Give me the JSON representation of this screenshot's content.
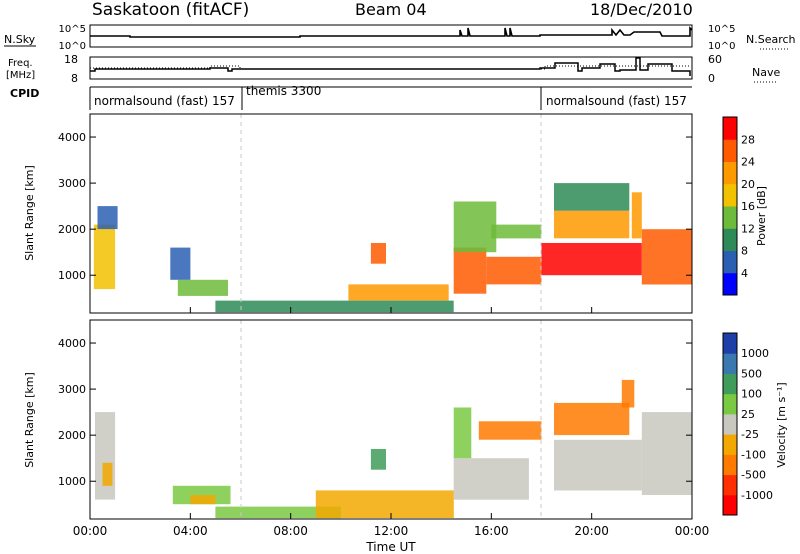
{
  "header": {
    "station": "Saskatoon (fitACF)",
    "beam": "Beam 04",
    "date": "18/Dec/2010"
  },
  "top_panels": {
    "nsky_label": "N.Sky",
    "nsky_ticks": [
      "10^5",
      "10^0"
    ],
    "nsearch_ticks": [
      "10^5",
      "10^0"
    ],
    "nsearch_label": "N.Search",
    "freq_label_1": "Freq.",
    "freq_label_2": "[MHz]",
    "freq_ticks": [
      "18",
      "8"
    ],
    "nave_ticks": [
      "60",
      "0"
    ],
    "nave_label": "Nave",
    "cpid_label": "CPID",
    "cpid_segments": [
      {
        "name": "normalsound (fast) 157",
        "start_hour": 0
      },
      {
        "name": "themis 3300",
        "start_hour": 6
      },
      {
        "name": "normalsound (fast) 157",
        "start_hour": 18
      }
    ]
  },
  "axes": {
    "ylabel": "Slant Range [km]",
    "y_ticks": [
      "1000",
      "2000",
      "3000",
      "4000"
    ],
    "x_ticks": [
      "00:00",
      "04:00",
      "08:00",
      "12:00",
      "16:00",
      "20:00",
      "00:00"
    ],
    "xlabel": "Time UT"
  },
  "power_colorbar": {
    "label": "Power [dB]",
    "ticks": [
      "4",
      "8",
      "12",
      "16",
      "20",
      "24",
      "28"
    ],
    "colors": [
      "#0000ff",
      "#2b5fb4",
      "#2e8b57",
      "#6dbb3a",
      "#f2c200",
      "#ff9900",
      "#ff5a00",
      "#ff0000"
    ]
  },
  "velocity_colorbar": {
    "label": "Velocity [m s⁻¹]",
    "ticks": [
      "1000",
      "500",
      "100",
      "25",
      "-25",
      "-100",
      "-500",
      "-1000"
    ],
    "colors": [
      "#1e3ea8",
      "#3a78b0",
      "#3f9c5b",
      "#7ac943",
      "#c8c8c0",
      "#f2a800",
      "#ff7a00",
      "#ff3000",
      "#ff0000"
    ]
  },
  "chart_data": {
    "type": "heatmap",
    "x_range_hours": [
      0,
      24
    ],
    "y_range_km": [
      180,
      4500
    ],
    "power_patches": [
      {
        "t0": 0.15,
        "t1": 1.0,
        "r0": 700,
        "r1": 2100,
        "level": 4
      },
      {
        "t0": 0.3,
        "t1": 1.1,
        "r0": 2000,
        "r1": 2500,
        "level": 1
      },
      {
        "t0": 3.5,
        "t1": 5.5,
        "r0": 550,
        "r1": 900,
        "level": 3
      },
      {
        "t0": 3.2,
        "t1": 4.0,
        "r0": 900,
        "r1": 1600,
        "level": 1
      },
      {
        "t0": 5.0,
        "t1": 14.5,
        "r0": 200,
        "r1": 450,
        "level": 2
      },
      {
        "t0": 10.3,
        "t1": 14.3,
        "r0": 450,
        "r1": 800,
        "level": 5
      },
      {
        "t0": 11.2,
        "t1": 11.8,
        "r0": 1250,
        "r1": 1700,
        "level": 6
      },
      {
        "t0": 14.5,
        "t1": 15.8,
        "r0": 600,
        "r1": 1600,
        "level": 6
      },
      {
        "t0": 14.5,
        "t1": 16.2,
        "r0": 1500,
        "r1": 2600,
        "level": 3
      },
      {
        "t0": 15.8,
        "t1": 18.0,
        "r0": 800,
        "r1": 1400,
        "level": 6
      },
      {
        "t0": 16.0,
        "t1": 18.0,
        "r0": 1800,
        "r1": 2100,
        "level": 3
      },
      {
        "t0": 18.0,
        "t1": 22.0,
        "r0": 1000,
        "r1": 1700,
        "level": 7
      },
      {
        "t0": 18.5,
        "t1": 21.5,
        "r0": 1800,
        "r1": 2400,
        "level": 5
      },
      {
        "t0": 18.5,
        "t1": 21.5,
        "r0": 2400,
        "r1": 3000,
        "level": 2
      },
      {
        "t0": 22.0,
        "t1": 24.0,
        "r0": 800,
        "r1": 2000,
        "level": 6
      },
      {
        "t0": 21.6,
        "t1": 22.0,
        "r0": 1800,
        "r1": 2800,
        "level": 5
      }
    ],
    "velocity_patches": [
      {
        "t0": 0.2,
        "t1": 1.0,
        "r0": 600,
        "r1": 2500,
        "level": 4
      },
      {
        "t0": 0.5,
        "t1": 0.9,
        "r0": 900,
        "r1": 1400,
        "level": 5
      },
      {
        "t0": 3.3,
        "t1": 5.6,
        "r0": 500,
        "r1": 900,
        "level": 3
      },
      {
        "t0": 4.0,
        "t1": 5.0,
        "r0": 500,
        "r1": 700,
        "level": 5
      },
      {
        "t0": 5.0,
        "t1": 10.0,
        "r0": 200,
        "r1": 450,
        "level": 3
      },
      {
        "t0": 9.0,
        "t1": 14.5,
        "r0": 200,
        "r1": 800,
        "level": 5
      },
      {
        "t0": 11.2,
        "t1": 11.8,
        "r0": 1250,
        "r1": 1700,
        "level": 2
      },
      {
        "t0": 14.5,
        "t1": 17.5,
        "r0": 600,
        "r1": 1500,
        "level": 4
      },
      {
        "t0": 15.5,
        "t1": 18.0,
        "r0": 1900,
        "r1": 2300,
        "level": 6
      },
      {
        "t0": 14.5,
        "t1": 15.2,
        "r0": 1500,
        "r1": 2600,
        "level": 3
      },
      {
        "t0": 18.5,
        "t1": 22.0,
        "r0": 800,
        "r1": 1900,
        "level": 4
      },
      {
        "t0": 18.5,
        "t1": 21.5,
        "r0": 2000,
        "r1": 2700,
        "level": 6
      },
      {
        "t0": 22.0,
        "t1": 24.0,
        "r0": 700,
        "r1": 2500,
        "level": 4
      },
      {
        "t0": 21.2,
        "t1": 21.7,
        "r0": 2600,
        "r1": 3200,
        "level": 6
      }
    ]
  }
}
